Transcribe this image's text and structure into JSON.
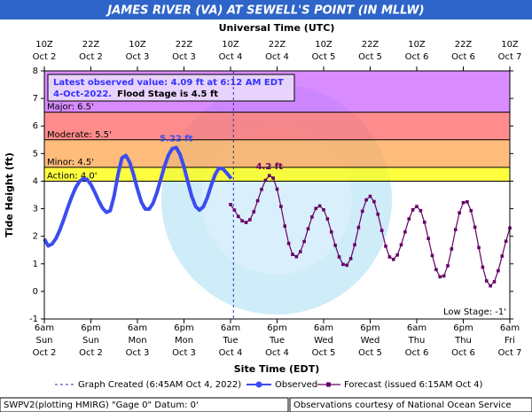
{
  "chart_data": {
    "type": "hydrograph",
    "title": "JAMES RIVER (VA) AT SEWELL'S POINT (IN MLLW)",
    "top_axis_label": "Universal Time (UTC)",
    "x_label": "Site Time (EDT)",
    "y_label": "Tide Height (ft)",
    "ylim": [
      -1,
      8
    ],
    "yticks": [
      -1,
      0,
      1,
      2,
      3,
      4,
      5,
      6,
      7,
      8
    ],
    "xlim": [
      "Oct 2 06:00",
      "Oct 7 06:00"
    ],
    "xticks": [
      {
        "value": "Oct 2 06:00",
        "label": [
          "6am",
          "Sun",
          "Oct 2"
        ]
      },
      {
        "value": "Oct 2 18:00",
        "label": [
          "6pm",
          "Sun",
          "Oct 2"
        ]
      },
      {
        "value": "Oct 3 06:00",
        "label": [
          "6am",
          "Mon",
          "Oct 3"
        ]
      },
      {
        "value": "Oct 3 18:00",
        "label": [
          "6pm",
          "Mon",
          "Oct 3"
        ]
      },
      {
        "value": "Oct 4 06:00",
        "label": [
          "6am",
          "Tue",
          "Oct 4"
        ]
      },
      {
        "value": "Oct 4 18:00",
        "label": [
          "6pm",
          "Tue",
          "Oct 4"
        ]
      },
      {
        "value": "Oct 5 06:00",
        "label": [
          "6am",
          "Wed",
          "Oct 5"
        ]
      },
      {
        "value": "Oct 5 18:00",
        "label": [
          "6pm",
          "Wed",
          "Oct 5"
        ]
      },
      {
        "value": "Oct 6 06:00",
        "label": [
          "6am",
          "Thu",
          "Oct 6"
        ]
      },
      {
        "value": "Oct 6 18:00",
        "label": [
          "6pm",
          "Thu",
          "Oct 6"
        ]
      },
      {
        "value": "Oct 7 06:00",
        "label": [
          "6am",
          "Fri",
          "Oct 7"
        ]
      }
    ],
    "top_xticks": [
      {
        "value": "Oct 2 06:00",
        "label": [
          "10Z",
          "Oct 2"
        ]
      },
      {
        "value": "Oct 2 18:00",
        "label": [
          "22Z",
          "Oct 2"
        ]
      },
      {
        "value": "Oct 3 06:00",
        "label": [
          "10Z",
          "Oct 3"
        ]
      },
      {
        "value": "Oct 3 18:00",
        "label": [
          "22Z",
          "Oct 3"
        ]
      },
      {
        "value": "Oct 4 06:00",
        "label": [
          "10Z",
          "Oct 4"
        ]
      },
      {
        "value": "Oct 4 18:00",
        "label": [
          "22Z",
          "Oct 4"
        ]
      },
      {
        "value": "Oct 5 06:00",
        "label": [
          "10Z",
          "Oct 5"
        ]
      },
      {
        "value": "Oct 5 18:00",
        "label": [
          "22Z",
          "Oct 5"
        ]
      },
      {
        "value": "Oct 6 06:00",
        "label": [
          "10Z",
          "Oct 6"
        ]
      },
      {
        "value": "Oct 6 18:00",
        "label": [
          "22Z",
          "Oct 6"
        ]
      },
      {
        "value": "Oct 7 06:00",
        "label": [
          "10Z",
          "Oct 7"
        ]
      }
    ],
    "stages": [
      {
        "label": "Action: 4.0'",
        "value": 4.0,
        "color": "#ffff00"
      },
      {
        "label": "Minor: 4.5'",
        "value": 4.5,
        "color": "#ffa64d"
      },
      {
        "label": "Moderate: 5.5'",
        "value": 5.5,
        "color": "#ff6666"
      },
      {
        "label": "Major: 6.5'",
        "value": 6.5,
        "color": "#cc66ff"
      }
    ],
    "low_stage": {
      "label": "Low Stage: -1'",
      "value": -1
    },
    "info_box": {
      "lines": [
        "Latest observed value: 4.09 ft at 6:12 AM EDT",
        "4-Oct-2022."
      ],
      "flood_note": "Flood Stage is 4.5 ft"
    },
    "graph_created": {
      "name": "Graph Created (6:45AM Oct 4, 2022)",
      "x": "Oct 4 06:45"
    },
    "series": [
      {
        "name": "Observed",
        "color": "#3b4cf0",
        "peak_label": "5.22 ft",
        "x": [
          "Oct 2 06:00",
          "Oct 2 07:00",
          "Oct 2 08:00",
          "Oct 2 09:00",
          "Oct 2 10:00",
          "Oct 2 11:00",
          "Oct 2 12:00",
          "Oct 2 13:00",
          "Oct 2 14:00",
          "Oct 2 15:00",
          "Oct 2 16:00",
          "Oct 2 17:00",
          "Oct 2 18:00",
          "Oct 2 19:00",
          "Oct 2 20:00",
          "Oct 2 21:00",
          "Oct 2 22:00",
          "Oct 2 23:00",
          "Oct 3 00:00",
          "Oct 3 01:00",
          "Oct 3 02:00",
          "Oct 3 03:00",
          "Oct 3 04:00",
          "Oct 3 05:00",
          "Oct 3 06:00",
          "Oct 3 07:00",
          "Oct 3 08:00",
          "Oct 3 09:00",
          "Oct 3 10:00",
          "Oct 3 11:00",
          "Oct 3 12:00",
          "Oct 3 13:00",
          "Oct 3 14:00",
          "Oct 3 15:00",
          "Oct 3 16:00",
          "Oct 3 17:00",
          "Oct 3 18:00",
          "Oct 3 19:00",
          "Oct 3 20:00",
          "Oct 3 21:00",
          "Oct 3 22:00",
          "Oct 3 23:00",
          "Oct 4 00:00",
          "Oct 4 01:00",
          "Oct 4 02:00",
          "Oct 4 03:00",
          "Oct 4 04:00",
          "Oct 4 05:00",
          "Oct 4 06:12"
        ],
        "values": [
          1.9,
          1.65,
          1.72,
          1.92,
          2.23,
          2.61,
          3.02,
          3.41,
          3.74,
          3.98,
          4.09,
          4.06,
          3.88,
          3.6,
          3.29,
          3.02,
          2.87,
          2.93,
          3.47,
          4.25,
          4.84,
          4.93,
          4.69,
          4.24,
          3.71,
          3.25,
          2.99,
          2.98,
          3.19,
          3.58,
          4.06,
          4.55,
          4.95,
          5.18,
          5.22,
          4.96,
          4.52,
          3.97,
          3.45,
          3.08,
          2.95,
          3.07,
          3.4,
          3.84,
          4.23,
          4.47,
          4.45,
          4.3,
          4.09
        ]
      },
      {
        "name": "Forecast (issued 6:15AM Oct 4)",
        "color": "#660066",
        "peak_label": "4.2 ft",
        "x": [
          "Oct 4 06:00",
          "Oct 4 07:00",
          "Oct 4 08:00",
          "Oct 4 09:00",
          "Oct 4 10:00",
          "Oct 4 11:00",
          "Oct 4 12:00",
          "Oct 4 13:00",
          "Oct 4 14:00",
          "Oct 4 15:00",
          "Oct 4 16:00",
          "Oct 4 17:00",
          "Oct 4 18:00",
          "Oct 4 19:00",
          "Oct 4 20:00",
          "Oct 4 21:00",
          "Oct 4 22:00",
          "Oct 4 23:00",
          "Oct 5 00:00",
          "Oct 5 01:00",
          "Oct 5 02:00",
          "Oct 5 03:00",
          "Oct 5 04:00",
          "Oct 5 05:00",
          "Oct 5 06:00",
          "Oct 5 07:00",
          "Oct 5 08:00",
          "Oct 5 09:00",
          "Oct 5 10:00",
          "Oct 5 11:00",
          "Oct 5 12:00",
          "Oct 5 13:00",
          "Oct 5 14:00",
          "Oct 5 15:00",
          "Oct 5 16:00",
          "Oct 5 17:00",
          "Oct 5 18:00",
          "Oct 5 19:00",
          "Oct 5 20:00",
          "Oct 5 21:00",
          "Oct 5 22:00",
          "Oct 5 23:00",
          "Oct 6 00:00",
          "Oct 6 01:00",
          "Oct 6 02:00",
          "Oct 6 03:00",
          "Oct 6 04:00",
          "Oct 6 05:00",
          "Oct 6 06:00",
          "Oct 6 07:00",
          "Oct 6 08:00",
          "Oct 6 09:00",
          "Oct 6 10:00",
          "Oct 6 11:00",
          "Oct 6 12:00",
          "Oct 6 13:00",
          "Oct 6 14:00",
          "Oct 6 15:00",
          "Oct 6 16:00",
          "Oct 6 17:00",
          "Oct 6 18:00",
          "Oct 6 19:00",
          "Oct 6 20:00",
          "Oct 6 21:00",
          "Oct 6 22:00",
          "Oct 6 23:00",
          "Oct 7 00:00",
          "Oct 7 01:00",
          "Oct 7 02:00",
          "Oct 7 03:00",
          "Oct 7 04:00",
          "Oct 7 05:00",
          "Oct 7 06:00"
        ],
        "values": [
          3.15,
          2.95,
          2.72,
          2.56,
          2.5,
          2.6,
          2.89,
          3.29,
          3.7,
          4.03,
          4.2,
          4.11,
          3.71,
          3.08,
          2.37,
          1.74,
          1.34,
          1.26,
          1.44,
          1.81,
          2.27,
          2.7,
          3.01,
          3.1,
          2.96,
          2.63,
          2.16,
          1.67,
          1.25,
          0.98,
          0.95,
          1.19,
          1.69,
          2.32,
          2.91,
          3.32,
          3.45,
          3.26,
          2.8,
          2.21,
          1.64,
          1.25,
          1.16,
          1.32,
          1.69,
          2.16,
          2.63,
          2.96,
          3.08,
          2.93,
          2.51,
          1.92,
          1.3,
          0.79,
          0.53,
          0.56,
          0.93,
          1.54,
          2.24,
          2.85,
          3.22,
          3.25,
          2.93,
          2.33,
          1.59,
          0.88,
          0.38,
          0.2,
          0.35,
          0.75,
          1.28,
          1.82,
          2.3
        ]
      }
    ],
    "footer_left": "SWPV2(plotting HMIRG) \"Gage 0\" Datum: 0'",
    "footer_right": "Observations courtesy of National Ocean Service"
  }
}
